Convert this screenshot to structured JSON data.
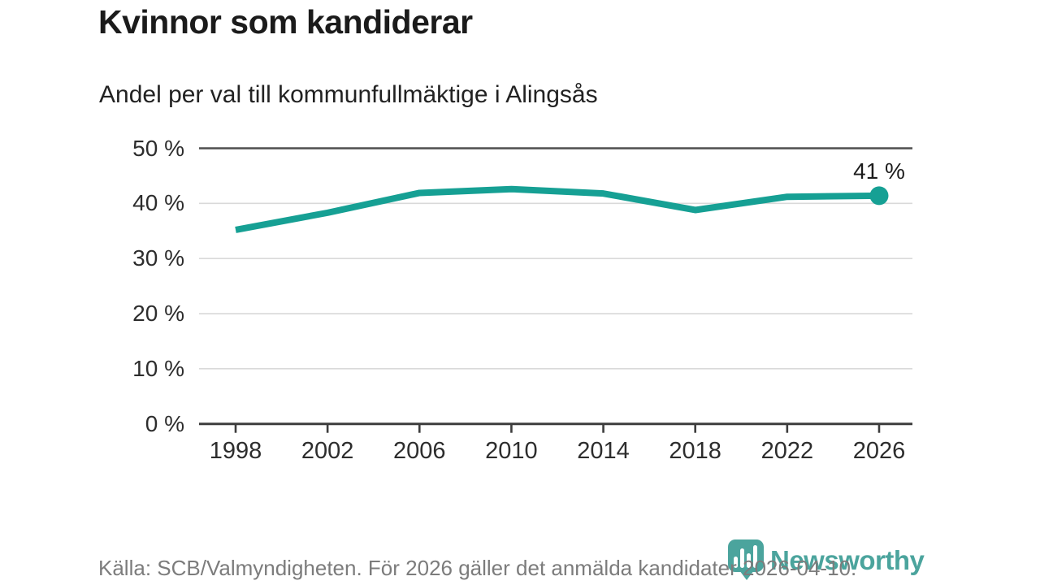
{
  "header": {
    "title": "Kvinnor som kandiderar",
    "subtitle": "Andel per val till kommunfullmäktige i Alingsås"
  },
  "chart_data": {
    "type": "line",
    "title": "Kvinnor som kandiderar",
    "subtitle": "Andel per val till kommunfullmäktige i Alingsås",
    "x": [
      1998,
      2002,
      2006,
      2010,
      2014,
      2018,
      2022,
      2026
    ],
    "xtick_labels": [
      "1998",
      "2002",
      "2006",
      "2010",
      "2014",
      "2018",
      "2022",
      "2026"
    ],
    "series": [
      {
        "name": "Andel kvinnor",
        "values": [
          35.2,
          38.3,
          41.9,
          42.6,
          41.8,
          38.8,
          41.2,
          41.4
        ]
      }
    ],
    "end_label": "41 %",
    "ylim": [
      0,
      50
    ],
    "yticks": [
      0,
      10,
      20,
      30,
      40,
      50
    ],
    "ytick_labels": [
      "0 %",
      "10 %",
      "20 %",
      "30 %",
      "40 %",
      "50 %"
    ],
    "grid": "horizontal",
    "legend": "none",
    "endpoint_marker": true,
    "colors": {
      "line": "#16a094",
      "grid": "#d9d9d9",
      "axis": "#3d3d3d",
      "axis_top": "#4f4f4f",
      "text": "#2d2d2d"
    }
  },
  "footer": {
    "source": "Källa: SCB/Valmyndigheten. För 2026 gäller det anmälda kandidater 2026-04-10."
  },
  "branding": {
    "logo_text": "Newsworthy",
    "logo_color": "#4ba49d",
    "logo_icon": "bar-chart-pin-icon"
  }
}
